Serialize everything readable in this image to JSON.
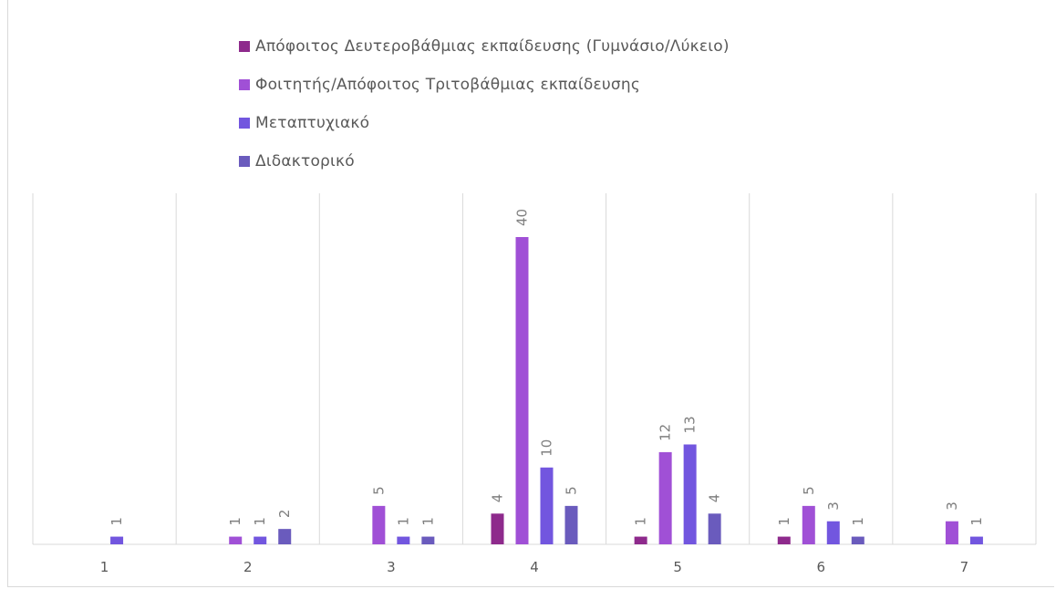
{
  "chart_data": {
    "type": "bar",
    "categories": [
      "1",
      "2",
      "3",
      "4",
      "5",
      "6",
      "7"
    ],
    "series": [
      {
        "name": "Απόφοιτος Δευτεροβάθμιας εκπαίδευσης (Γυμνάσιο/Λύκειο)",
        "color": "#8e2a8c",
        "values": [
          null,
          null,
          null,
          4,
          1,
          1,
          null
        ]
      },
      {
        "name": "Φοιτητής/Απόφοιτος Τριτοβάθμιας εκπαίδευσης",
        "color": "#a050d6",
        "values": [
          null,
          1,
          5,
          40,
          12,
          5,
          3
        ]
      },
      {
        "name": "Μεταπτυχιακό",
        "color": "#7256df",
        "values": [
          1,
          1,
          1,
          10,
          13,
          3,
          1
        ]
      },
      {
        "name": "Διδακτορικό",
        "color": "#6a5bbd",
        "values": [
          null,
          2,
          1,
          5,
          4,
          1,
          null
        ]
      }
    ],
    "title": "",
    "xlabel": "",
    "ylabel": "",
    "ylim": [
      0,
      40
    ],
    "grid": "vertical",
    "legend": "top"
  }
}
